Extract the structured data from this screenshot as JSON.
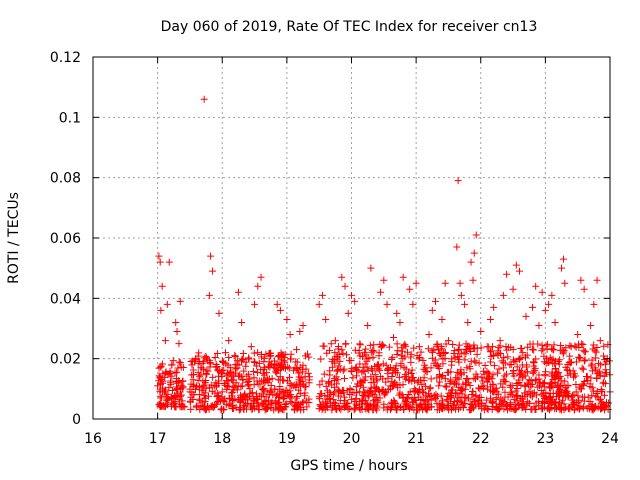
{
  "chart_data": {
    "type": "scatter",
    "title": "Day 060 of 2019, Rate Of TEC Index for receiver cn13",
    "xlabel": "GPS time / hours",
    "ylabel": "ROTI / TECUs",
    "xlim": [
      16,
      24
    ],
    "ylim": [
      0,
      0.12
    ],
    "x_ticks": [
      16,
      17,
      18,
      19,
      20,
      21,
      22,
      23,
      24
    ],
    "x_tick_labels": [
      "16",
      "17",
      "18",
      "19",
      "20",
      "21",
      "22",
      "23",
      "24"
    ],
    "y_ticks": [
      0,
      0.02,
      0.04,
      0.06,
      0.08,
      0.1,
      0.12
    ],
    "y_tick_labels": [
      "0",
      "0.02",
      "0.04",
      "0.06",
      "0.08",
      "0.1",
      "0.12"
    ],
    "grid": true,
    "marker": "+",
    "color": "#ff0000",
    "series": [
      {
        "name": "ROTI",
        "points": [
          [
            17.0,
            0.011
          ],
          [
            17.02,
            0.054
          ],
          [
            17.04,
            0.052
          ],
          [
            17.05,
            0.036
          ],
          [
            17.07,
            0.044
          ],
          [
            17.08,
            0.015
          ],
          [
            17.1,
            0.009
          ],
          [
            17.12,
            0.026
          ],
          [
            17.15,
            0.038
          ],
          [
            17.18,
            0.052
          ],
          [
            17.2,
            0.012
          ],
          [
            17.22,
            0.018
          ],
          [
            17.25,
            0.007
          ],
          [
            17.28,
            0.032
          ],
          [
            17.3,
            0.029
          ],
          [
            17.33,
            0.025
          ],
          [
            17.35,
            0.039
          ],
          [
            17.38,
            0.006
          ],
          [
            17.42,
            0.004
          ],
          [
            17.5,
            0.009
          ],
          [
            17.55,
            0.013
          ],
          [
            17.6,
            0.011
          ],
          [
            17.65,
            0.019
          ],
          [
            17.72,
            0.106
          ],
          [
            17.75,
            0.016
          ],
          [
            17.8,
            0.041
          ],
          [
            17.82,
            0.054
          ],
          [
            17.85,
            0.049
          ],
          [
            17.9,
            0.012
          ],
          [
            17.95,
            0.035
          ],
          [
            18.0,
            0.009
          ],
          [
            18.05,
            0.022
          ],
          [
            18.1,
            0.026
          ],
          [
            18.15,
            0.014
          ],
          [
            18.2,
            0.018
          ],
          [
            18.25,
            0.042
          ],
          [
            18.3,
            0.032
          ],
          [
            18.35,
            0.008
          ],
          [
            18.4,
            0.011
          ],
          [
            18.45,
            0.024
          ],
          [
            18.5,
            0.038
          ],
          [
            18.55,
            0.044
          ],
          [
            18.6,
            0.047
          ],
          [
            18.65,
            0.006
          ],
          [
            18.7,
            0.013
          ],
          [
            18.75,
            0.021
          ],
          [
            18.8,
            0.017
          ],
          [
            18.85,
            0.038
          ],
          [
            18.9,
            0.036
          ],
          [
            18.95,
            0.009
          ],
          [
            19.0,
            0.033
          ],
          [
            19.05,
            0.028
          ],
          [
            19.1,
            0.011
          ],
          [
            19.15,
            0.023
          ],
          [
            19.2,
            0.029
          ],
          [
            19.25,
            0.031
          ],
          [
            19.3,
            0.006
          ],
          [
            19.35,
            0.014
          ],
          [
            19.5,
            0.038
          ],
          [
            19.55,
            0.041
          ],
          [
            19.6,
            0.033
          ],
          [
            19.65,
            0.012
          ],
          [
            19.7,
            0.019
          ],
          [
            19.75,
            0.026
          ],
          [
            19.8,
            0.009
          ],
          [
            19.85,
            0.047
          ],
          [
            19.9,
            0.044
          ],
          [
            19.95,
            0.035
          ],
          [
            20.0,
            0.041
          ],
          [
            20.05,
            0.039
          ],
          [
            20.1,
            0.016
          ],
          [
            20.15,
            0.012
          ],
          [
            20.2,
            0.022
          ],
          [
            20.25,
            0.031
          ],
          [
            20.3,
            0.05
          ],
          [
            20.35,
            0.008
          ],
          [
            20.4,
            0.018
          ],
          [
            20.45,
            0.042
          ],
          [
            20.5,
            0.046
          ],
          [
            20.55,
            0.038
          ],
          [
            20.6,
            0.011
          ],
          [
            20.65,
            0.027
          ],
          [
            20.7,
            0.035
          ],
          [
            20.75,
            0.032
          ],
          [
            20.8,
            0.047
          ],
          [
            20.85,
            0.014
          ],
          [
            20.9,
            0.043
          ],
          [
            20.95,
            0.038
          ],
          [
            21.0,
            0.045
          ],
          [
            21.05,
            0.024
          ],
          [
            21.1,
            0.009
          ],
          [
            21.15,
            0.017
          ],
          [
            21.2,
            0.028
          ],
          [
            21.25,
            0.036
          ],
          [
            21.3,
            0.039
          ],
          [
            21.35,
            0.011
          ],
          [
            21.4,
            0.033
          ],
          [
            21.45,
            0.045
          ],
          [
            21.5,
            0.026
          ],
          [
            21.55,
            0.019
          ],
          [
            21.6,
            0.012
          ],
          [
            21.63,
            0.057
          ],
          [
            21.65,
            0.079
          ],
          [
            21.68,
            0.045
          ],
          [
            21.7,
            0.041
          ],
          [
            21.75,
            0.038
          ],
          [
            21.8,
            0.032
          ],
          [
            21.85,
            0.052
          ],
          [
            21.88,
            0.046
          ],
          [
            21.9,
            0.055
          ],
          [
            21.93,
            0.061
          ],
          [
            21.95,
            0.014
          ],
          [
            22.0,
            0.029
          ],
          [
            22.05,
            0.011
          ],
          [
            22.1,
            0.024
          ],
          [
            22.15,
            0.033
          ],
          [
            22.2,
            0.037
          ],
          [
            22.25,
            0.009
          ],
          [
            22.3,
            0.026
          ],
          [
            22.35,
            0.041
          ],
          [
            22.4,
            0.048
          ],
          [
            22.45,
            0.018
          ],
          [
            22.5,
            0.043
          ],
          [
            22.55,
            0.051
          ],
          [
            22.6,
            0.049
          ],
          [
            22.65,
            0.022
          ],
          [
            22.7,
            0.034
          ],
          [
            22.75,
            0.013
          ],
          [
            22.8,
            0.037
          ],
          [
            22.85,
            0.044
          ],
          [
            22.9,
            0.031
          ],
          [
            22.95,
            0.042
          ],
          [
            23.0,
            0.036
          ],
          [
            23.05,
            0.038
          ],
          [
            23.1,
            0.041
          ],
          [
            23.15,
            0.032
          ],
          [
            23.2,
            0.019
          ],
          [
            23.25,
            0.05
          ],
          [
            23.28,
            0.053
          ],
          [
            23.3,
            0.045
          ],
          [
            23.35,
            0.011
          ],
          [
            23.4,
            0.024
          ],
          [
            23.45,
            0.015
          ],
          [
            23.5,
            0.028
          ],
          [
            23.55,
            0.046
          ],
          [
            23.6,
            0.043
          ],
          [
            23.65,
            0.014
          ],
          [
            23.7,
            0.031
          ],
          [
            23.75,
            0.038
          ],
          [
            23.8,
            0.046
          ],
          [
            23.85,
            0.026
          ],
          [
            23.9,
            0.012
          ],
          [
            23.95,
            0.019
          ],
          [
            24.0,
            0.009
          ]
        ],
        "dense_band": [
          {
            "x0": 17.0,
            "x1": 17.4,
            "ymin": 0.004,
            "ymax": 0.02
          },
          {
            "x0": 17.5,
            "x1": 19.35,
            "ymin": 0.003,
            "ymax": 0.022
          },
          {
            "x0": 19.5,
            "x1": 24.0,
            "ymin": 0.003,
            "ymax": 0.025
          }
        ]
      }
    ]
  }
}
